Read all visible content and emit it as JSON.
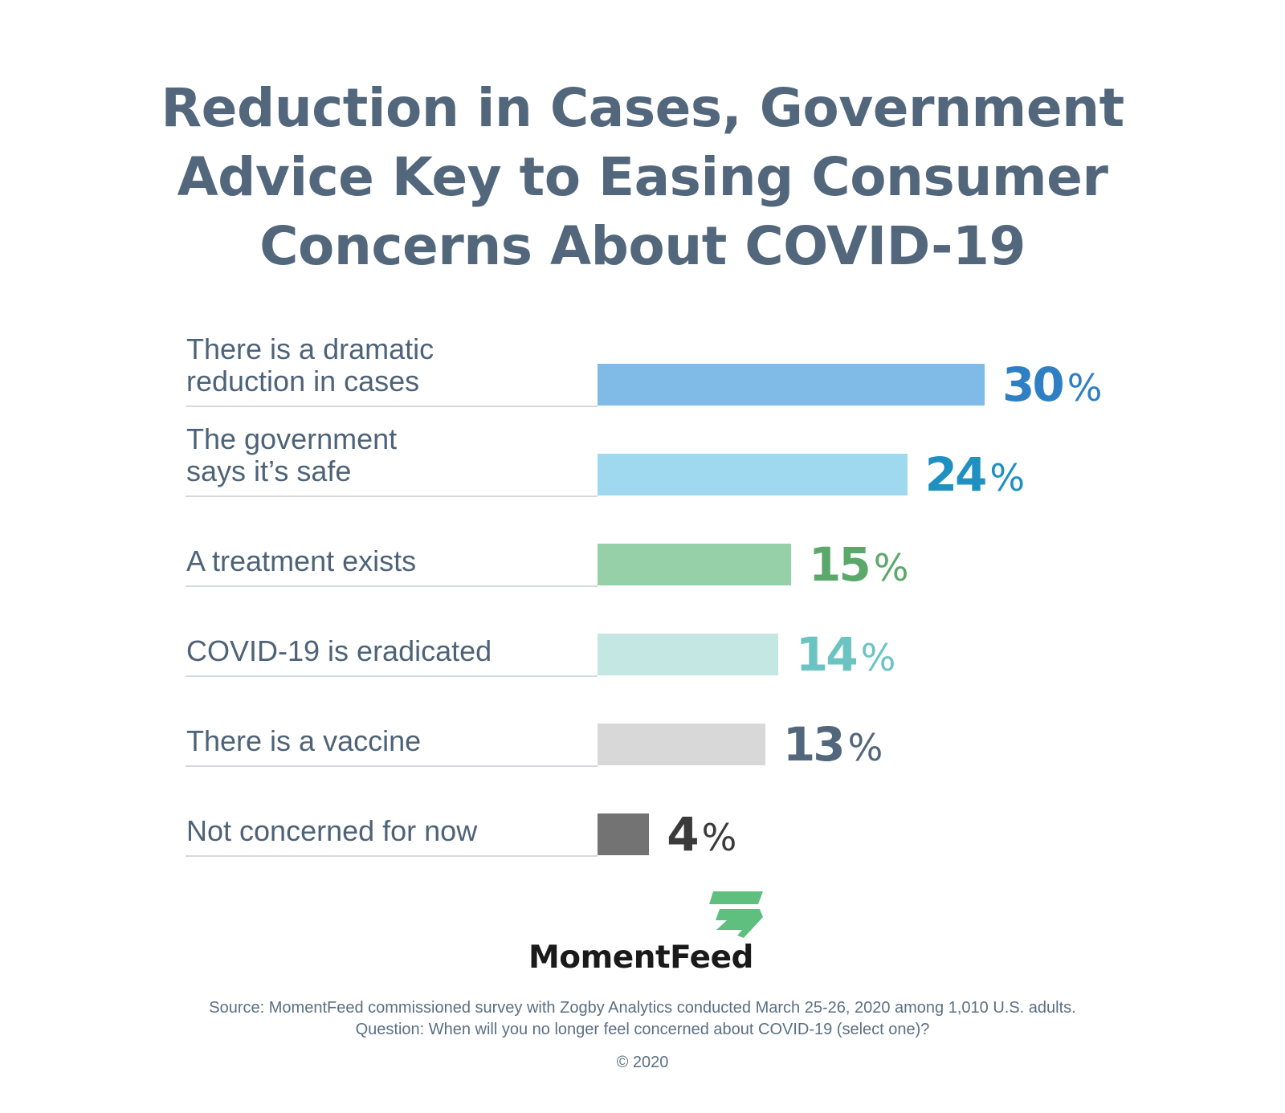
{
  "title_lines": [
    "Reduction in Cases, Government",
    "Advice Key to Easing Consumer",
    "Concerns About COVID-19"
  ],
  "chart_data": {
    "type": "bar",
    "orientation": "horizontal",
    "title": "Reduction in Cases, Government Advice Key to Easing Consumer Concerns About COVID-19",
    "categories": [
      [
        "There is a dramatic",
        "reduction in cases"
      ],
      [
        "The government",
        "says it’s safe"
      ],
      [
        "A treatment exists"
      ],
      [
        "COVID-19 is eradicated"
      ],
      [
        "There is a vaccine"
      ],
      [
        "Not concerned for now"
      ]
    ],
    "values": [
      30,
      24,
      15,
      14,
      13,
      4
    ],
    "value_labels": [
      "30",
      "24",
      "15",
      "14",
      "13",
      "4"
    ],
    "unit": "%",
    "bar_colors": [
      "#7fbbe6",
      "#9ed9f0",
      "#95d0a8",
      "#c4e7e4",
      "#d8d8d8",
      "#737373"
    ],
    "label_colors": [
      "#2f7fc4",
      "#1f90c0",
      "#5aa86a",
      "#6cc4c2",
      "#52667c",
      "#3a3a3a"
    ],
    "xlim": [
      0,
      30
    ],
    "grid": false,
    "legend": "none"
  },
  "logo": {
    "text": "MomentFeed",
    "mark_color": "#5fbf7f"
  },
  "source": {
    "line1": "Source: MomentFeed commissioned survey with Zogby Analytics conducted March 25-26, 2020 among 1,010 U.S. adults.",
    "line2": "Question: When will you no longer feel concerned about COVID-19 (select one)?",
    "copyright": "© 2020"
  }
}
